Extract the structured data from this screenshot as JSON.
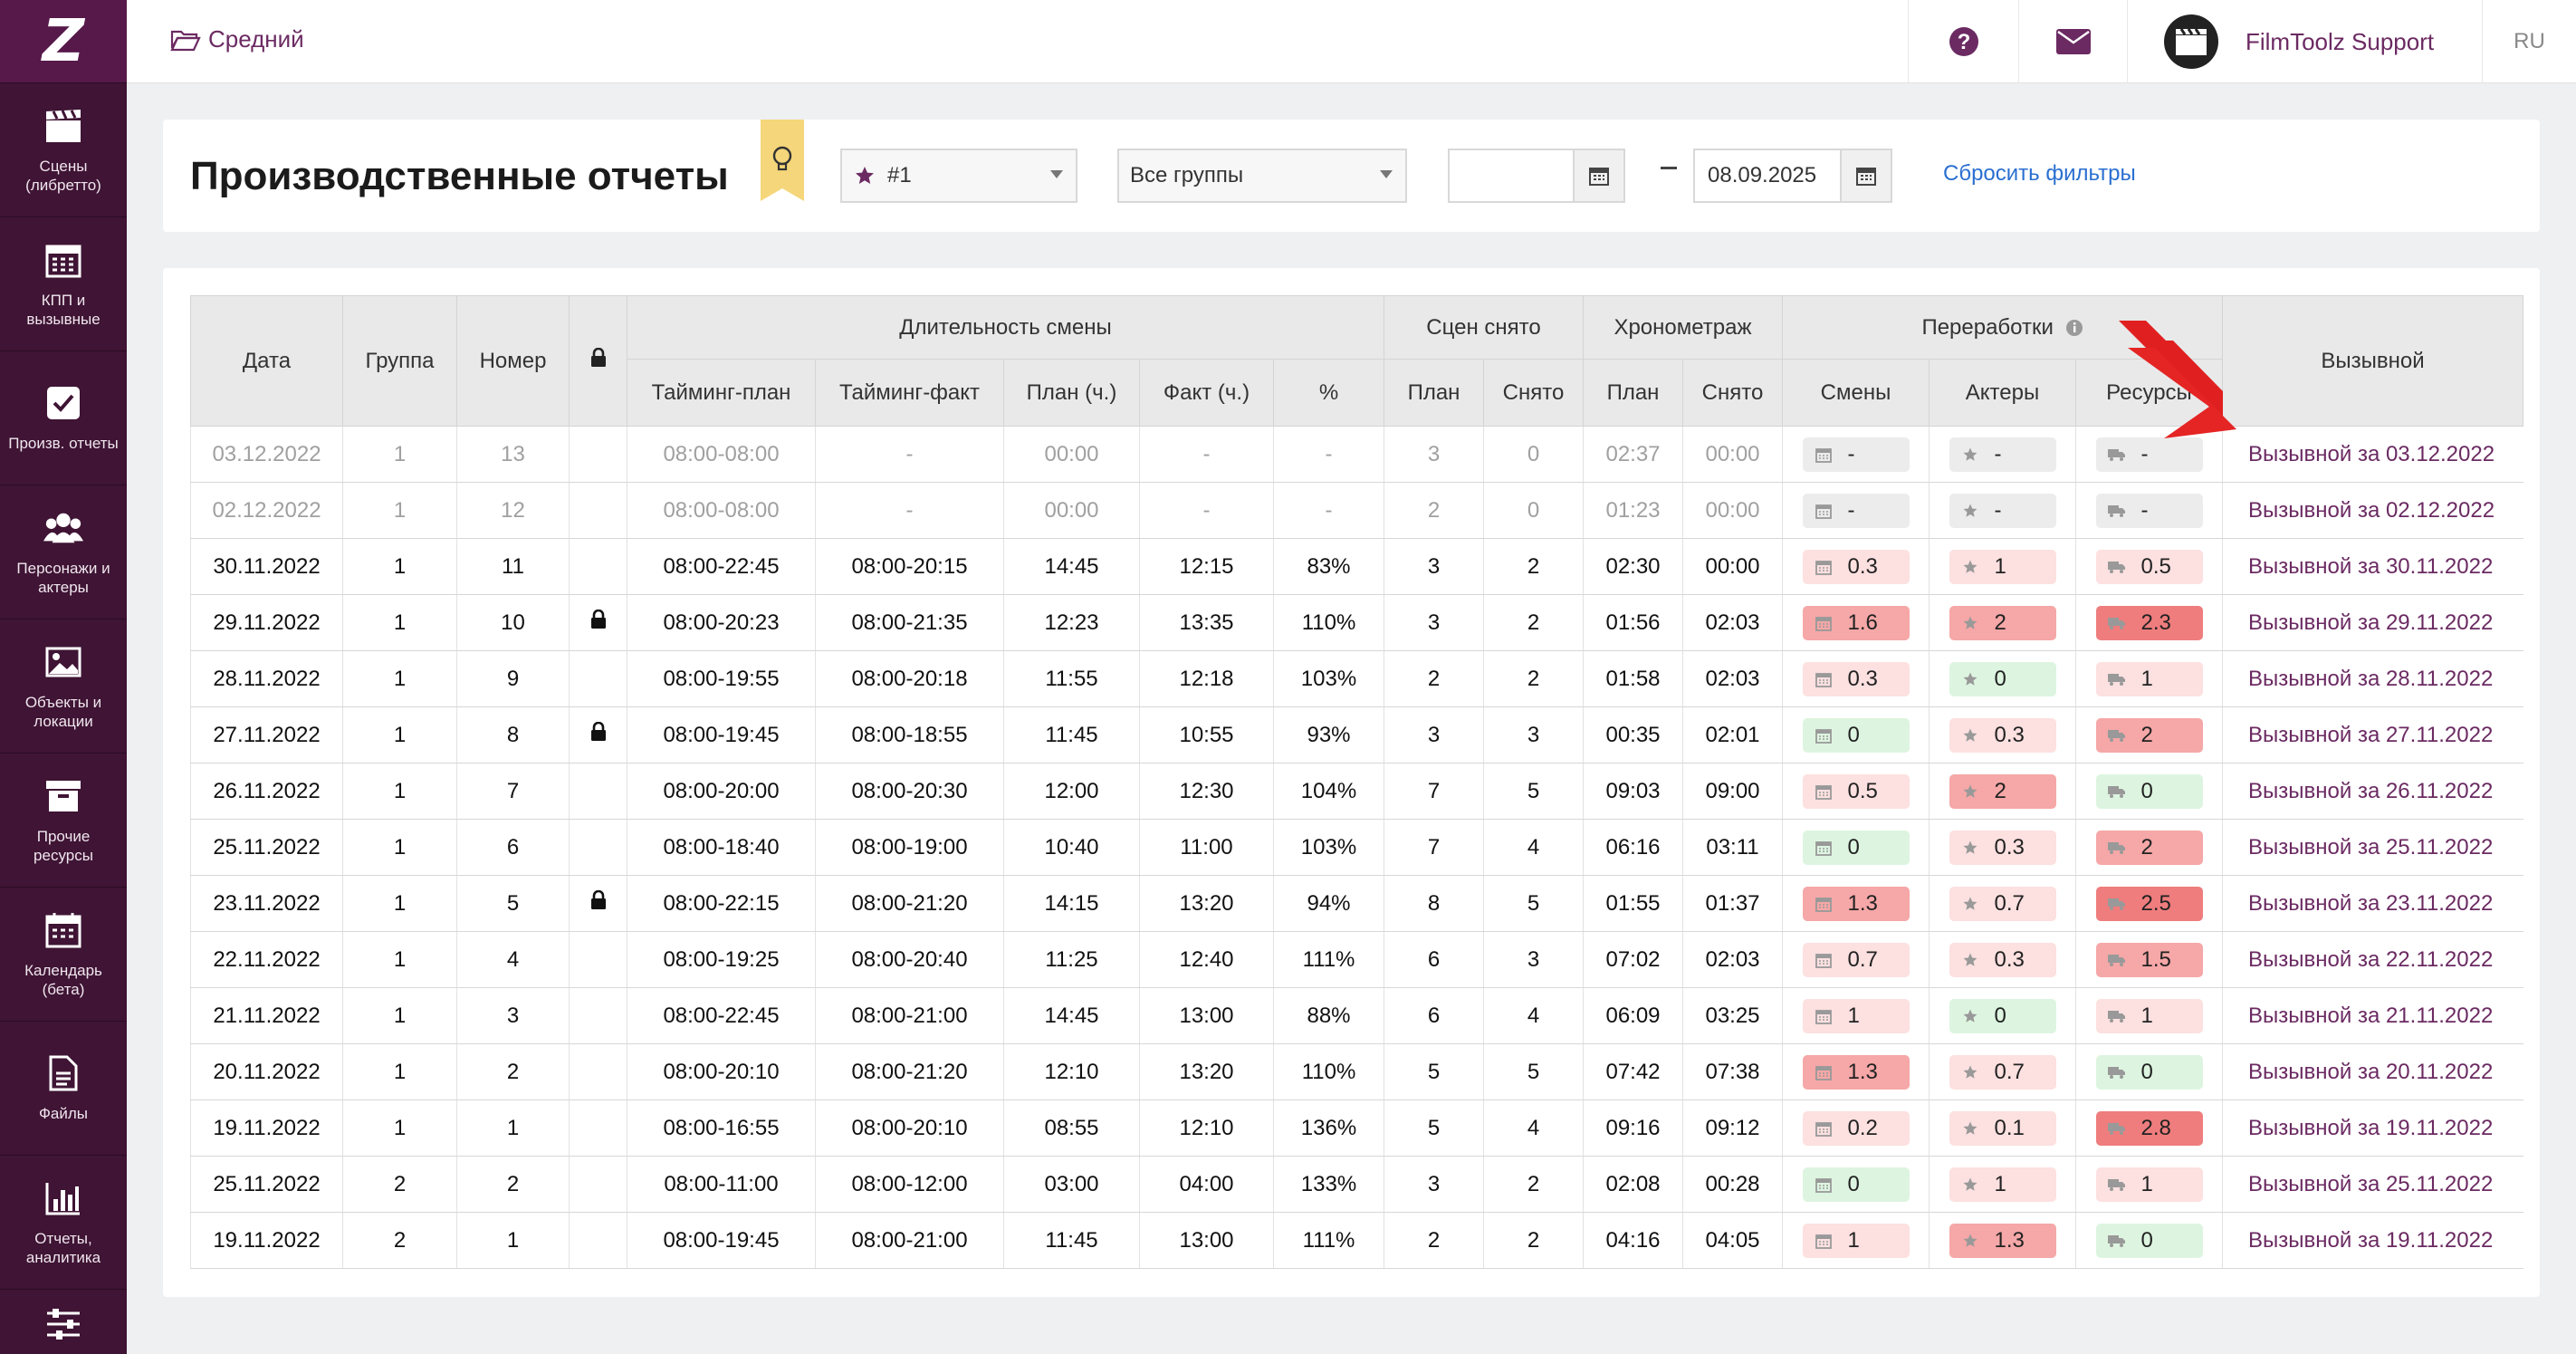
{
  "sidebar": {
    "logo": "Z",
    "items": [
      {
        "label": "Сцены\n(либретто)",
        "icon": "clapperboard-icon"
      },
      {
        "label": "КПП и\nвызывные",
        "icon": "calendar-grid-icon"
      },
      {
        "label": "Произв. отчеты",
        "icon": "checkbox-icon"
      },
      {
        "label": "Персонажи и\nактеры",
        "icon": "people-icon"
      },
      {
        "label": "Объекты и\nлокации",
        "icon": "image-icon"
      },
      {
        "label": "Прочие\nресурсы",
        "icon": "archive-box-icon"
      },
      {
        "label": "Календарь\n(бета)",
        "icon": "calendar-icon"
      },
      {
        "label": "Файлы",
        "icon": "file-icon"
      },
      {
        "label": "Отчеты,\nаналитика",
        "icon": "bar-chart-icon"
      },
      {
        "label": "",
        "icon": "sliders-icon"
      }
    ]
  },
  "topbar": {
    "breadcrumb": "Средний",
    "support_name": "FilmToolz Support",
    "lang": "RU"
  },
  "header": {
    "title": "Производственные отчеты",
    "star_select": "#1",
    "group_select": "Все группы",
    "date_from": "",
    "date_to": "08.09.2025",
    "reset": "Сбросить фильтры"
  },
  "table": {
    "headers": {
      "date": "Дата",
      "group": "Группа",
      "number": "Номер",
      "shift_duration": "Длительность смены",
      "scenes_shot": "Сцен снято",
      "timing": "Хронометраж",
      "overtime": "Переработки",
      "call": "Вызывной",
      "timing_plan": "Тайминг-план",
      "timing_fact": "Тайминг-факт",
      "plan_h": "План (ч.)",
      "fact_h": "Факт (ч.)",
      "pct": "%",
      "plan": "План",
      "shot": "Снято",
      "plan2": "План",
      "shot2": "Снято",
      "shifts": "Смены",
      "actors": "Актеры",
      "resources": "Ресурсы"
    },
    "rows": [
      {
        "dim": true,
        "date": "03.12.2022",
        "group": "1",
        "num": "13",
        "lock": false,
        "tplan": "08:00-08:00",
        "tfact": "-",
        "ph": "00:00",
        "fh": "-",
        "pct": "-",
        "sp": "3",
        "ss": "0",
        "hp": "02:37",
        "hs": "00:00",
        "o1": [
          "-",
          "grey"
        ],
        "o2": [
          "-",
          "grey"
        ],
        "o3": [
          "-",
          "grey"
        ],
        "call": "Вызывной за 03.12.2022"
      },
      {
        "dim": true,
        "date": "02.12.2022",
        "group": "1",
        "num": "12",
        "lock": false,
        "tplan": "08:00-08:00",
        "tfact": "-",
        "ph": "00:00",
        "fh": "-",
        "pct": "-",
        "sp": "2",
        "ss": "0",
        "hp": "01:23",
        "hs": "00:00",
        "o1": [
          "-",
          "grey"
        ],
        "o2": [
          "-",
          "grey"
        ],
        "o3": [
          "-",
          "grey"
        ],
        "call": "Вызывной за 02.12.2022"
      },
      {
        "dim": false,
        "date": "30.11.2022",
        "group": "1",
        "num": "11",
        "lock": false,
        "tplan": "08:00-22:45",
        "tfact": "08:00-20:15",
        "ph": "14:45",
        "fh": "12:15",
        "pct": "83%",
        "sp": "3",
        "ss": "2",
        "hp": "02:30",
        "hs": "00:00",
        "o1": [
          "0.3",
          "pink"
        ],
        "o2": [
          "1",
          "pink"
        ],
        "o3": [
          "0.5",
          "pink"
        ],
        "call": "Вызывной за 30.11.2022"
      },
      {
        "dim": false,
        "date": "29.11.2022",
        "group": "1",
        "num": "10",
        "lock": true,
        "tplan": "08:00-20:23",
        "tfact": "08:00-21:35",
        "ph": "12:23",
        "fh": "13:35",
        "pct": "110%",
        "sp": "3",
        "ss": "2",
        "hp": "01:56",
        "hs": "02:03",
        "o1": [
          "1.6",
          "red1"
        ],
        "o2": [
          "2",
          "red1"
        ],
        "o3": [
          "2.3",
          "red2"
        ],
        "call": "Вызывной за 29.11.2022"
      },
      {
        "dim": false,
        "date": "28.11.2022",
        "group": "1",
        "num": "9",
        "lock": false,
        "tplan": "08:00-19:55",
        "tfact": "08:00-20:18",
        "ph": "11:55",
        "fh": "12:18",
        "pct": "103%",
        "sp": "2",
        "ss": "2",
        "hp": "01:58",
        "hs": "02:03",
        "o1": [
          "0.3",
          "pink"
        ],
        "o2": [
          "0",
          "green"
        ],
        "o3": [
          "1",
          "pink"
        ],
        "call": "Вызывной за 28.11.2022"
      },
      {
        "dim": false,
        "date": "27.11.2022",
        "group": "1",
        "num": "8",
        "lock": true,
        "tplan": "08:00-19:45",
        "tfact": "08:00-18:55",
        "ph": "11:45",
        "fh": "10:55",
        "pct": "93%",
        "sp": "3",
        "ss": "3",
        "hp": "00:35",
        "hs": "02:01",
        "o1": [
          "0",
          "green"
        ],
        "o2": [
          "0.3",
          "pink"
        ],
        "o3": [
          "2",
          "red1"
        ],
        "call": "Вызывной за 27.11.2022"
      },
      {
        "dim": false,
        "date": "26.11.2022",
        "group": "1",
        "num": "7",
        "lock": false,
        "tplan": "08:00-20:00",
        "tfact": "08:00-20:30",
        "ph": "12:00",
        "fh": "12:30",
        "pct": "104%",
        "sp": "7",
        "ss": "5",
        "hp": "09:03",
        "hs": "09:00",
        "o1": [
          "0.5",
          "pink"
        ],
        "o2": [
          "2",
          "red1"
        ],
        "o3": [
          "0",
          "green"
        ],
        "call": "Вызывной за 26.11.2022"
      },
      {
        "dim": false,
        "date": "25.11.2022",
        "group": "1",
        "num": "6",
        "lock": false,
        "tplan": "08:00-18:40",
        "tfact": "08:00-19:00",
        "ph": "10:40",
        "fh": "11:00",
        "pct": "103%",
        "sp": "7",
        "ss": "4",
        "hp": "06:16",
        "hs": "03:11",
        "o1": [
          "0",
          "green"
        ],
        "o2": [
          "0.3",
          "pink"
        ],
        "o3": [
          "2",
          "red1"
        ],
        "call": "Вызывной за 25.11.2022"
      },
      {
        "dim": false,
        "date": "23.11.2022",
        "group": "1",
        "num": "5",
        "lock": true,
        "tplan": "08:00-22:15",
        "tfact": "08:00-21:20",
        "ph": "14:15",
        "fh": "13:20",
        "pct": "94%",
        "sp": "8",
        "ss": "5",
        "hp": "01:55",
        "hs": "01:37",
        "o1": [
          "1.3",
          "red1"
        ],
        "o2": [
          "0.7",
          "pink"
        ],
        "o3": [
          "2.5",
          "red2"
        ],
        "call": "Вызывной за 23.11.2022"
      },
      {
        "dim": false,
        "date": "22.11.2022",
        "group": "1",
        "num": "4",
        "lock": false,
        "tplan": "08:00-19:25",
        "tfact": "08:00-20:40",
        "ph": "11:25",
        "fh": "12:40",
        "pct": "111%",
        "sp": "6",
        "ss": "3",
        "hp": "07:02",
        "hs": "02:03",
        "o1": [
          "0.7",
          "pink"
        ],
        "o2": [
          "0.3",
          "pink"
        ],
        "o3": [
          "1.5",
          "red1"
        ],
        "call": "Вызывной за 22.11.2022"
      },
      {
        "dim": false,
        "date": "21.11.2022",
        "group": "1",
        "num": "3",
        "lock": false,
        "tplan": "08:00-22:45",
        "tfact": "08:00-21:00",
        "ph": "14:45",
        "fh": "13:00",
        "pct": "88%",
        "sp": "6",
        "ss": "4",
        "hp": "06:09",
        "hs": "03:25",
        "o1": [
          "1",
          "pink"
        ],
        "o2": [
          "0",
          "green"
        ],
        "o3": [
          "1",
          "pink"
        ],
        "call": "Вызывной за 21.11.2022"
      },
      {
        "dim": false,
        "date": "20.11.2022",
        "group": "1",
        "num": "2",
        "lock": false,
        "tplan": "08:00-20:10",
        "tfact": "08:00-21:20",
        "ph": "12:10",
        "fh": "13:20",
        "pct": "110%",
        "sp": "5",
        "ss": "5",
        "hp": "07:42",
        "hs": "07:38",
        "o1": [
          "1.3",
          "red1"
        ],
        "o2": [
          "0.7",
          "pink"
        ],
        "o3": [
          "0",
          "green"
        ],
        "call": "Вызывной за 20.11.2022"
      },
      {
        "dim": false,
        "date": "19.11.2022",
        "group": "1",
        "num": "1",
        "lock": false,
        "tplan": "08:00-16:55",
        "tfact": "08:00-20:10",
        "ph": "08:55",
        "fh": "12:10",
        "pct": "136%",
        "sp": "5",
        "ss": "4",
        "hp": "09:16",
        "hs": "09:12",
        "o1": [
          "0.2",
          "pink"
        ],
        "o2": [
          "0.1",
          "pink"
        ],
        "o3": [
          "2.8",
          "red2"
        ],
        "call": "Вызывной за 19.11.2022"
      },
      {
        "dim": false,
        "date": "25.11.2022",
        "group": "2",
        "num": "2",
        "lock": false,
        "tplan": "08:00-11:00",
        "tfact": "08:00-12:00",
        "ph": "03:00",
        "fh": "04:00",
        "pct": "133%",
        "sp": "3",
        "ss": "2",
        "hp": "02:08",
        "hs": "00:28",
        "o1": [
          "0",
          "green"
        ],
        "o2": [
          "1",
          "pink"
        ],
        "o3": [
          "1",
          "pink"
        ],
        "call": "Вызывной за 25.11.2022"
      },
      {
        "dim": false,
        "date": "19.11.2022",
        "group": "2",
        "num": "1",
        "lock": false,
        "tplan": "08:00-19:45",
        "tfact": "08:00-21:00",
        "ph": "11:45",
        "fh": "13:00",
        "pct": "111%",
        "sp": "2",
        "ss": "2",
        "hp": "04:16",
        "hs": "04:05",
        "o1": [
          "1",
          "pink"
        ],
        "o2": [
          "1.3",
          "red1"
        ],
        "o3": [
          "0",
          "green"
        ],
        "call": "Вызывной за 19.11.2022"
      }
    ]
  }
}
